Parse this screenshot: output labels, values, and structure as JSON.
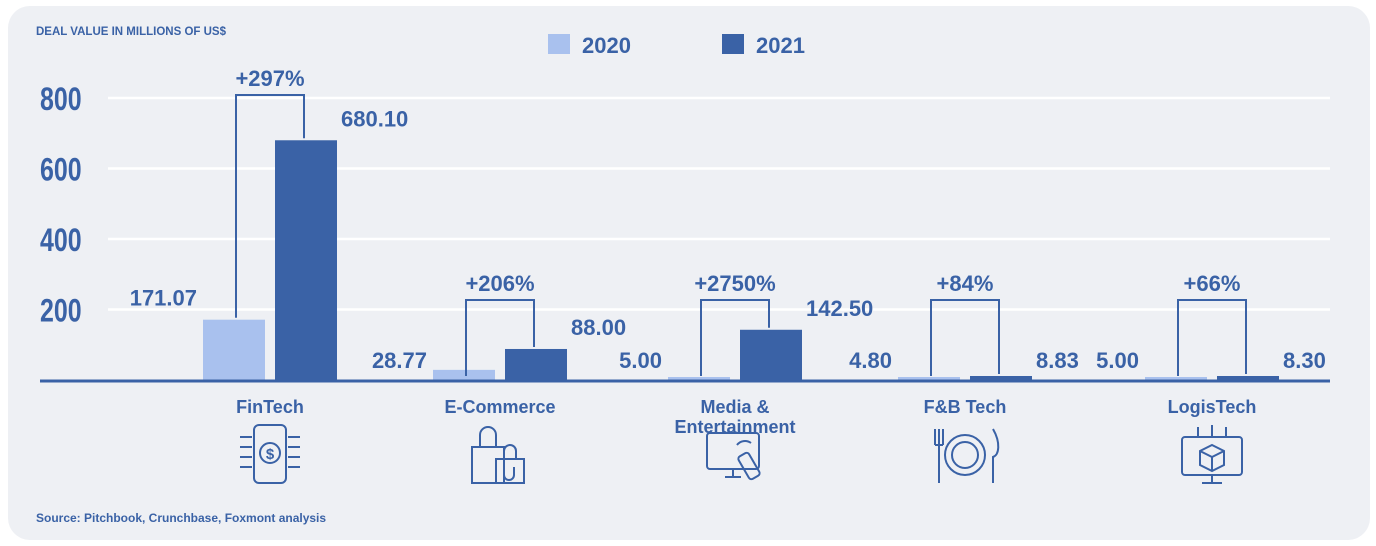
{
  "chart_data": {
    "type": "bar",
    "title": "DEAL VALUE IN MILLIONS OF US$",
    "source": "Source: Pitchbook, Crunchbase, Foxmont analysis",
    "categories": [
      "FinTech",
      "E-Commerce",
      "Media & Entertainment",
      "F&B Tech",
      "LogisTech"
    ],
    "category_lines": [
      [
        "FinTech"
      ],
      [
        "E-Commerce"
      ],
      [
        "Media &",
        "Entertainment"
      ],
      [
        "F&B Tech"
      ],
      [
        "LogisTech"
      ]
    ],
    "series": [
      {
        "name": "2020",
        "color": "#a9c1ee",
        "values": [
          171.07,
          28.77,
          5.0,
          4.8,
          5.0
        ],
        "labels": [
          "171.07",
          "28.77",
          "5.00",
          "4.80",
          "5.00"
        ]
      },
      {
        "name": "2021",
        "color": "#3a62a6",
        "values": [
          680.1,
          88.0,
          142.5,
          8.83,
          8.3
        ],
        "labels": [
          "680.10",
          "88.00",
          "142.50",
          "8.83",
          "8.30"
        ]
      }
    ],
    "growth_labels": [
      "+297%",
      "+206%",
      "+2750%",
      "+84%",
      "+66%"
    ],
    "y_ticks": [
      200,
      400,
      600,
      800
    ],
    "y_tick_labels": [
      "200",
      "400",
      "600",
      "800"
    ],
    "ylim": [
      0,
      800
    ],
    "grid": true,
    "legend": "top-center",
    "icons": [
      "fintech-phone-dollar-icon",
      "shopping-bags-icon",
      "tv-remote-icon",
      "plate-fork-knife-icon",
      "box-monitor-icon"
    ]
  },
  "colors": {
    "axis": "#3a62a6",
    "text": "#3a62a6",
    "grid": "#ffffff",
    "background": "#eef0f4"
  }
}
